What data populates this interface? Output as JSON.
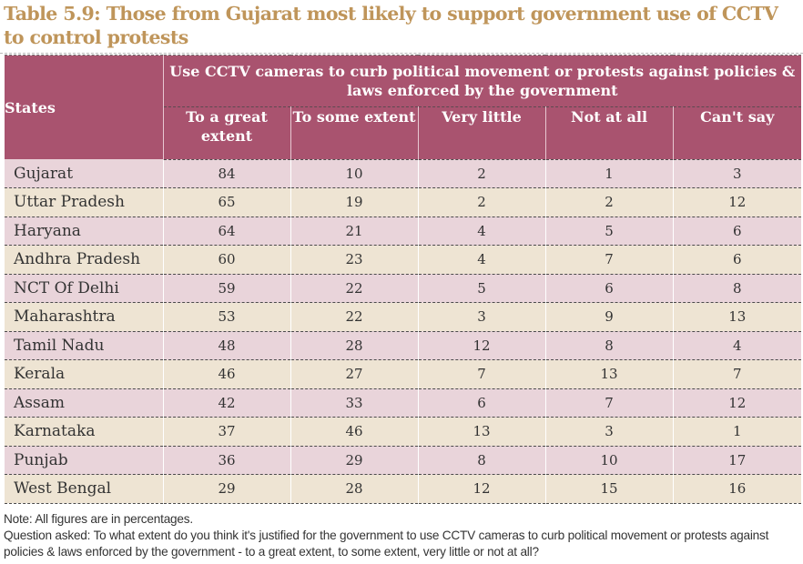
{
  "title": "Table 5.9: Those from Gujarat most likely to support government use of CCTV to control protests",
  "colors": {
    "title": "#bf955a",
    "header_bg": "#a9536f",
    "row_pink": "#e9d4da",
    "row_beige": "#eee4d3"
  },
  "table": {
    "states_header": "States",
    "group_header": "Use CCTV cameras to curb political movement or protests against policies & laws enforced by the government",
    "columns": [
      "To a great extent",
      "To some extent",
      "Very little",
      "Not at all",
      "Can't say"
    ],
    "rows": [
      {
        "state": "Gujarat",
        "values": [
          "84",
          "10",
          "2",
          "1",
          "3"
        ]
      },
      {
        "state": "Uttar Pradesh",
        "values": [
          "65",
          "19",
          "2",
          "2",
          "12"
        ]
      },
      {
        "state": "Haryana",
        "values": [
          "64",
          "21",
          "4",
          "5",
          "6"
        ]
      },
      {
        "state": "Andhra Pradesh",
        "values": [
          "60",
          "23",
          "4",
          "7",
          "6"
        ]
      },
      {
        "state": "NCT Of Delhi",
        "values": [
          "59",
          "22",
          "5",
          "6",
          "8"
        ]
      },
      {
        "state": "Maharashtra",
        "values": [
          "53",
          "22",
          "3",
          "9",
          "13"
        ]
      },
      {
        "state": "Tamil Nadu",
        "values": [
          "48",
          "28",
          "12",
          "8",
          "4"
        ]
      },
      {
        "state": "Kerala",
        "values": [
          "46",
          "27",
          "7",
          "13",
          "7"
        ]
      },
      {
        "state": "Assam",
        "values": [
          "42",
          "33",
          "6",
          "7",
          "12"
        ]
      },
      {
        "state": "Karnataka",
        "values": [
          "37",
          "46",
          "13",
          "3",
          "1"
        ]
      },
      {
        "state": "Punjab",
        "values": [
          "36",
          "29",
          "8",
          "10",
          "17"
        ]
      },
      {
        "state": "West Bengal",
        "values": [
          "29",
          "28",
          "12",
          "15",
          "16"
        ]
      }
    ]
  },
  "notes": {
    "note": "Note: All figures are in percentages.",
    "question": "Question asked: To what extent do you think it's justified for the government to use CCTV cameras to curb political movement or protests against policies & laws enforced by the government -  to a great extent, to some extent, very little or not at all?"
  }
}
